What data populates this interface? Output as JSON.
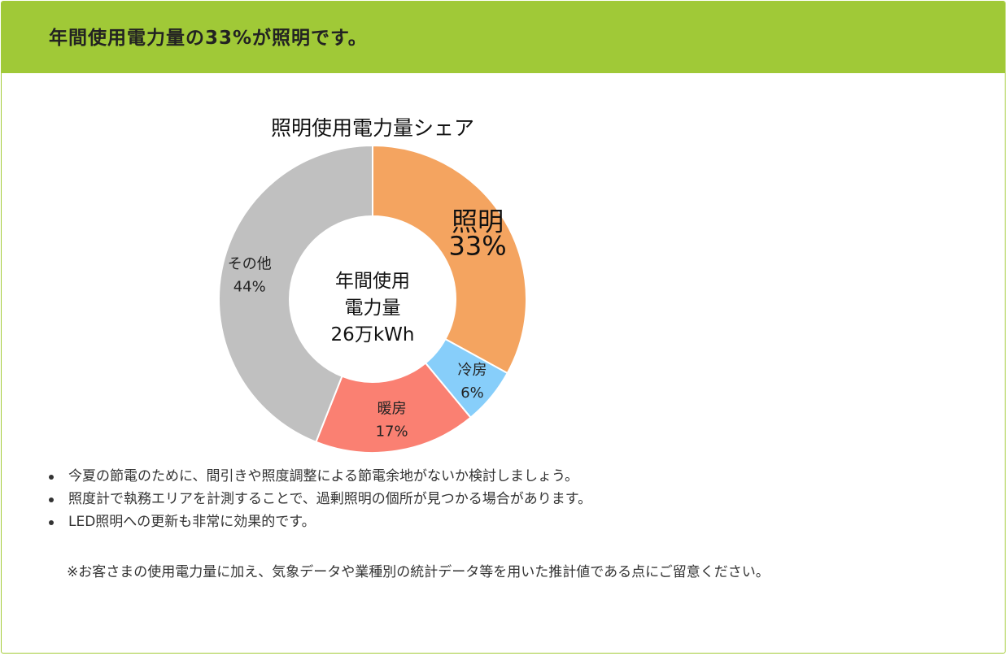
{
  "header": {
    "title": "年間使用電力量の33%が照明です。",
    "background_color": "#a0c937"
  },
  "chart_data": {
    "type": "pie",
    "style": "donut",
    "title": "照明使用電力量シェア",
    "center_label": [
      "年間使用",
      "電力量",
      "26万kWh"
    ],
    "slices": [
      {
        "name": "照明",
        "value": 33,
        "label": "33%",
        "color": "#f4a460"
      },
      {
        "name": "冷房",
        "value": 6,
        "label": "6%",
        "color": "#87cefa"
      },
      {
        "name": "暖房",
        "value": 17,
        "label": "17%",
        "color": "#fa8072"
      },
      {
        "name": "その他",
        "value": 44,
        "label": "44%",
        "color": "#c0c0c0"
      }
    ]
  },
  "notes": [
    "今夏の節電のために、間引きや照度調整による節電余地がないか検討しましょう。",
    "照度計で執務エリアを計測することで、過剰照明の個所が見つかる場合があります。",
    "LED照明への更新も非常に効果的です。"
  ],
  "remark": "※お客さまの使用電力量に加え、気象データや業種別の統計データ等を用いた推計値である点にご留意ください。"
}
